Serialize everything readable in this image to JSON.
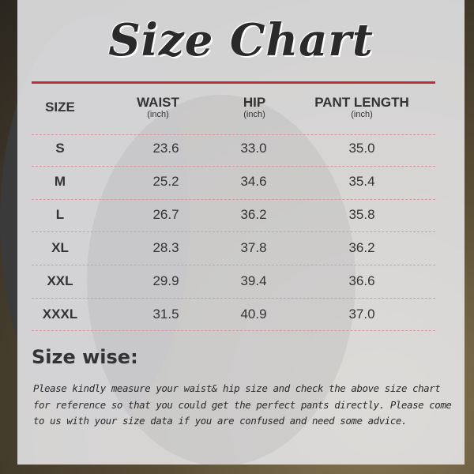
{
  "title": "Size Chart",
  "table": {
    "headers": [
      {
        "label": "SIZE",
        "unit": ""
      },
      {
        "label": "WAIST",
        "unit": "(inch)"
      },
      {
        "label": "HIP",
        "unit": "(inch)"
      },
      {
        "label": "PANT LENGTH",
        "unit": "(inch)"
      }
    ],
    "rows": [
      [
        "S",
        "23.6",
        "33.0",
        "35.0"
      ],
      [
        "M",
        "25.2",
        "34.6",
        "35.4"
      ],
      [
        "L",
        "26.7",
        "36.2",
        "35.8"
      ],
      [
        "XL",
        "28.3",
        "37.8",
        "36.2"
      ],
      [
        "XXL",
        "29.9",
        "39.4",
        "36.6"
      ],
      [
        "XXXL",
        "31.5",
        "40.9",
        "37.0"
      ]
    ]
  },
  "size_wise": {
    "title": "Size wise:",
    "text": "Please kindly measure your waist& hip size and check the above size chart for reference so that you could get the perfect pants directly. Please come to us with your size data if you are confused and need some advice."
  },
  "colors": {
    "accent_line": "#b8323a",
    "dashed_divider": "#d69aa0",
    "panel": "#e8e8ea"
  }
}
